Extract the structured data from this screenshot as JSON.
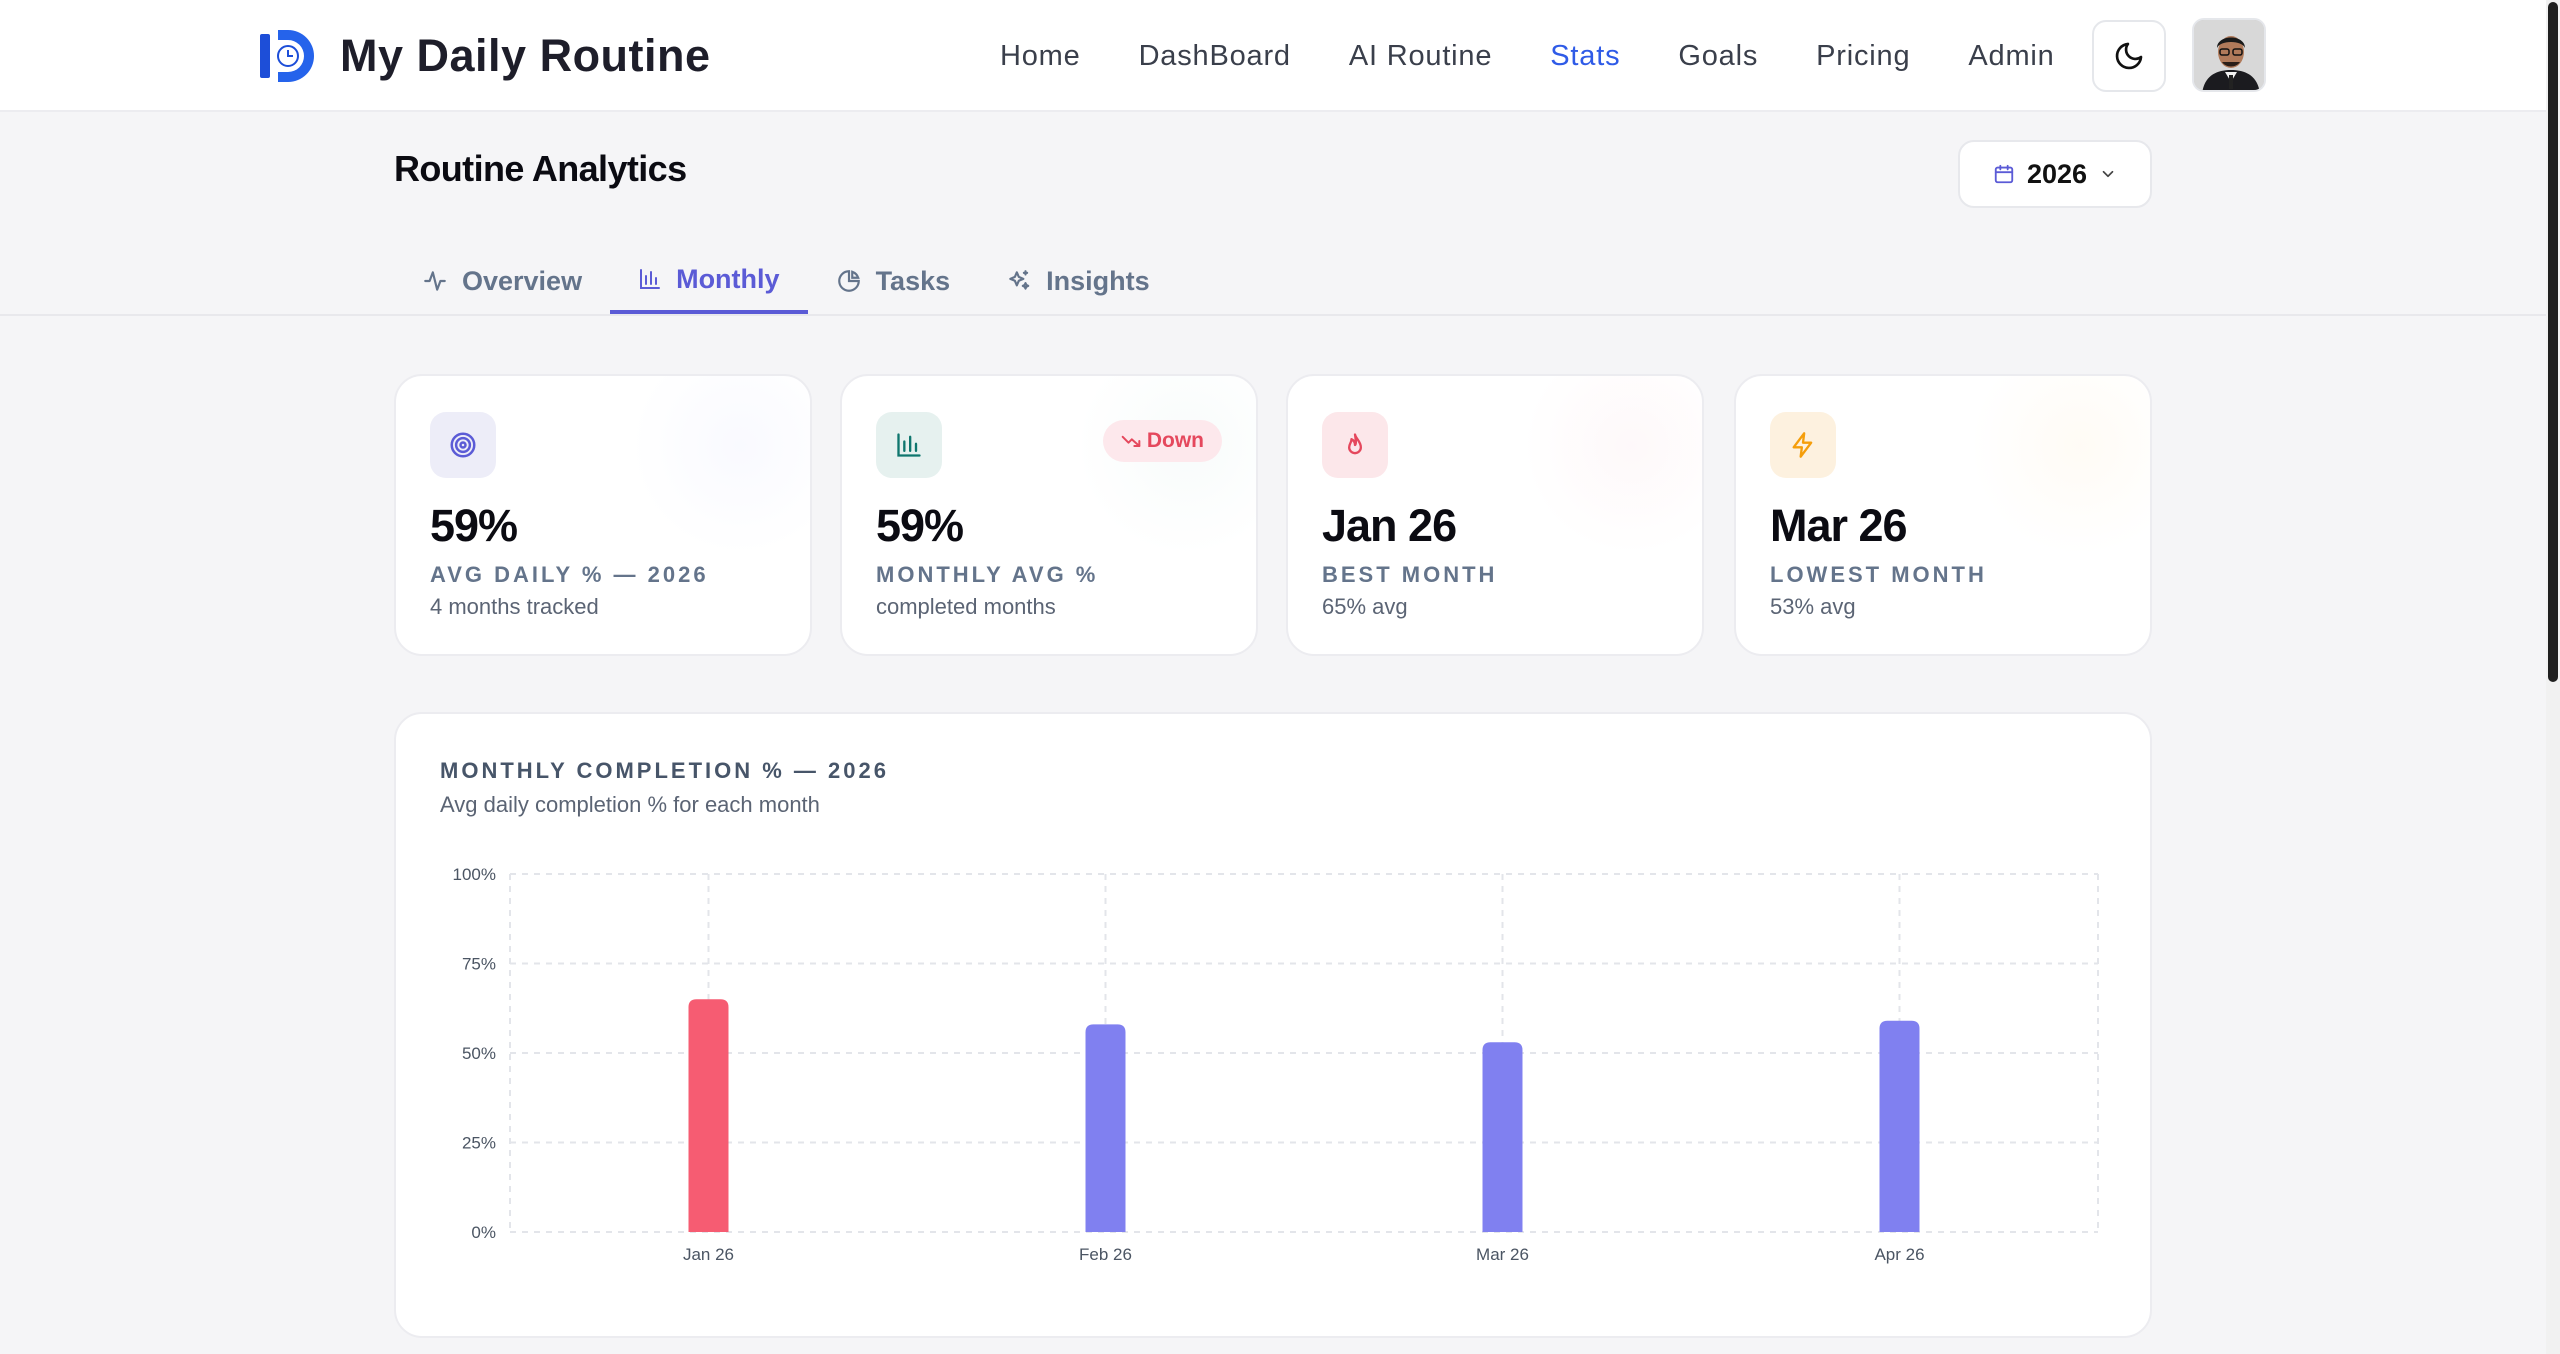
{
  "app": {
    "title": "My Daily Routine"
  },
  "nav": {
    "items": [
      {
        "label": "Home",
        "active": false
      },
      {
        "label": "DashBoard",
        "active": false
      },
      {
        "label": "AI Routine",
        "active": false
      },
      {
        "label": "Stats",
        "active": true
      },
      {
        "label": "Goals",
        "active": false
      },
      {
        "label": "Pricing",
        "active": false
      },
      {
        "label": "Admin",
        "active": false
      }
    ]
  },
  "page": {
    "title": "Routine Analytics",
    "year": "2026"
  },
  "tabs": [
    {
      "label": "Overview",
      "icon": "activity-icon",
      "active": false
    },
    {
      "label": "Monthly",
      "icon": "bar-chart-icon",
      "active": true
    },
    {
      "label": "Tasks",
      "icon": "pie-chart-icon",
      "active": false
    },
    {
      "label": "Insights",
      "icon": "sparkles-icon",
      "active": false
    }
  ],
  "cards": [
    {
      "value": "59%",
      "label": "AVG DAILY % — 2026",
      "sub": "4 months tracked",
      "icon": "target-icon",
      "accent": "#5b5bd6"
    },
    {
      "value": "59%",
      "label": "MONTHLY AVG %",
      "sub": "completed months",
      "icon": "bar-chart-icon",
      "accent": "#0f766e",
      "badge": "Down"
    },
    {
      "value": "Jan 26",
      "label": "BEST MONTH",
      "sub": "65% avg",
      "icon": "flame-icon",
      "accent": "#e5485d"
    },
    {
      "value": "Mar 26",
      "label": "LOWEST MONTH",
      "sub": "53% avg",
      "icon": "lightning-icon",
      "accent": "#f59e0b"
    }
  ],
  "chart_data": {
    "type": "bar",
    "title": "MONTHLY COMPLETION % — 2026",
    "subtitle": "Avg daily completion % for each month",
    "categories": [
      "Jan 26",
      "Feb 26",
      "Mar 26",
      "Apr 26"
    ],
    "values": [
      65,
      58,
      53,
      59
    ],
    "ylim": [
      0,
      100
    ],
    "yticks": [
      "0%",
      "25%",
      "50%",
      "75%",
      "100%"
    ],
    "grid": true,
    "colors": {
      "best": "#f65c72",
      "default": "#8080f0"
    }
  }
}
